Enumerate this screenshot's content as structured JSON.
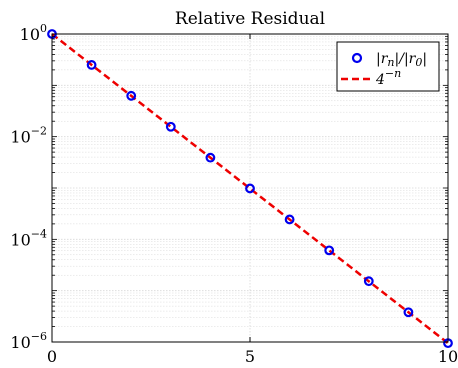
{
  "chart_data": {
    "type": "scatter",
    "title": "Relative Residual",
    "xlabel": "",
    "ylabel": "",
    "x_scale": "linear",
    "y_scale": "log",
    "xlim": [
      0,
      10
    ],
    "ylim": [
      1e-06,
      1
    ],
    "x_ticks": [
      {
        "value": 0,
        "label": "0"
      },
      {
        "value": 5,
        "label": "5"
      },
      {
        "value": 10,
        "label": "10"
      }
    ],
    "y_ticks": [
      {
        "value": 1,
        "base": "10",
        "exp": "0"
      },
      {
        "value": 0.01,
        "base": "10",
        "exp": "−2"
      },
      {
        "value": 0.0001,
        "base": "10",
        "exp": "−4"
      },
      {
        "value": 1e-06,
        "base": "10",
        "exp": "−6"
      }
    ],
    "grid": true,
    "legend_position": "top-right",
    "series": [
      {
        "name": "|r_n|/|r_0|",
        "style": "markers",
        "marker": "circle",
        "color": "#0000ee",
        "x": [
          0,
          1,
          2,
          3,
          4,
          5,
          6,
          7,
          8,
          9,
          10
        ],
        "y": [
          1,
          0.25,
          0.0625,
          0.0156,
          0.0039,
          0.00098,
          0.000244,
          6.1e-05,
          1.53e-05,
          3.8e-06,
          9.5e-07
        ]
      },
      {
        "name": "4^{-n}",
        "style": "dashed-line",
        "color": "#ee0000",
        "x": [
          0,
          10
        ],
        "y": [
          1,
          9.5e-07
        ]
      }
    ],
    "legend": {
      "scatter_label": {
        "a": "|r",
        "a_sub": "n",
        "b": "|/|r",
        "b_sub": "0",
        "c": "|"
      },
      "line_label": {
        "base": "4",
        "exp": "−n"
      }
    }
  },
  "colors": {
    "axis": "#000000",
    "grid": "#d8d8d8",
    "markers": "#0000ee",
    "line": "#ee0000"
  }
}
